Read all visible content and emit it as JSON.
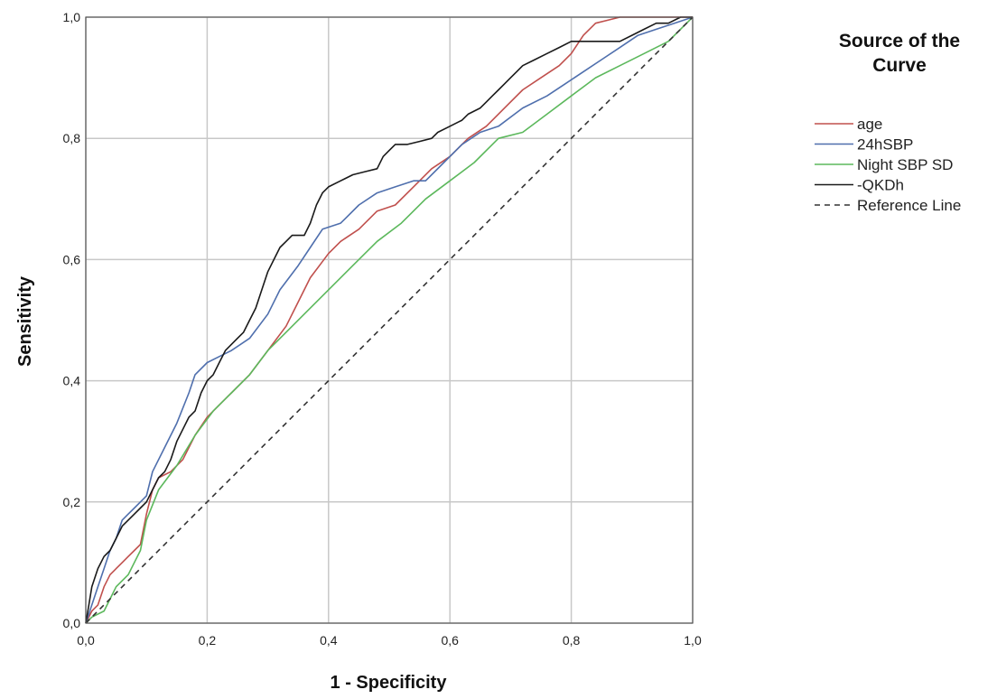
{
  "chart_data": {
    "type": "line",
    "title": "",
    "xlabel": "1 - Specificity",
    "ylabel": "Sensitivity",
    "xlim": [
      0,
      1
    ],
    "ylim": [
      0,
      1
    ],
    "grid": true,
    "legend_placement": "right",
    "legend_title_lines": [
      "Source of the",
      "Curve"
    ],
    "x_ticks": [
      "0,0",
      "0,2",
      "0,4",
      "0,6",
      "0,8",
      "1,0"
    ],
    "y_ticks": [
      "0,0",
      "0,2",
      "0,4",
      "0,6",
      "0,8",
      "1,0"
    ],
    "series": [
      {
        "name": "age",
        "color": "#c0504d",
        "style": "solid",
        "points": [
          [
            0,
            0
          ],
          [
            0.01,
            0.02
          ],
          [
            0.02,
            0.03
          ],
          [
            0.03,
            0.06
          ],
          [
            0.04,
            0.08
          ],
          [
            0.05,
            0.09
          ],
          [
            0.06,
            0.1
          ],
          [
            0.07,
            0.11
          ],
          [
            0.08,
            0.12
          ],
          [
            0.09,
            0.13
          ],
          [
            0.1,
            0.18
          ],
          [
            0.11,
            0.22
          ],
          [
            0.12,
            0.24
          ],
          [
            0.14,
            0.25
          ],
          [
            0.16,
            0.27
          ],
          [
            0.18,
            0.31
          ],
          [
            0.2,
            0.34
          ],
          [
            0.22,
            0.36
          ],
          [
            0.24,
            0.38
          ],
          [
            0.27,
            0.41
          ],
          [
            0.3,
            0.45
          ],
          [
            0.33,
            0.49
          ],
          [
            0.35,
            0.53
          ],
          [
            0.37,
            0.57
          ],
          [
            0.4,
            0.61
          ],
          [
            0.42,
            0.63
          ],
          [
            0.45,
            0.65
          ],
          [
            0.48,
            0.68
          ],
          [
            0.51,
            0.69
          ],
          [
            0.54,
            0.72
          ],
          [
            0.57,
            0.75
          ],
          [
            0.6,
            0.77
          ],
          [
            0.63,
            0.8
          ],
          [
            0.66,
            0.82
          ],
          [
            0.69,
            0.85
          ],
          [
            0.72,
            0.88
          ],
          [
            0.75,
            0.9
          ],
          [
            0.78,
            0.92
          ],
          [
            0.8,
            0.94
          ],
          [
            0.82,
            0.97
          ],
          [
            0.84,
            0.99
          ],
          [
            0.86,
            0.995
          ],
          [
            0.88,
            1.0
          ],
          [
            0.92,
            1.0
          ],
          [
            1.0,
            1.0
          ]
        ]
      },
      {
        "name": "24hSBP",
        "color": "#4f6fad",
        "style": "solid",
        "points": [
          [
            0,
            0
          ],
          [
            0.01,
            0.03
          ],
          [
            0.02,
            0.06
          ],
          [
            0.03,
            0.09
          ],
          [
            0.04,
            0.12
          ],
          [
            0.05,
            0.14
          ],
          [
            0.06,
            0.17
          ],
          [
            0.07,
            0.18
          ],
          [
            0.08,
            0.19
          ],
          [
            0.09,
            0.2
          ],
          [
            0.1,
            0.21
          ],
          [
            0.11,
            0.25
          ],
          [
            0.13,
            0.29
          ],
          [
            0.15,
            0.33
          ],
          [
            0.17,
            0.38
          ],
          [
            0.18,
            0.41
          ],
          [
            0.2,
            0.43
          ],
          [
            0.22,
            0.44
          ],
          [
            0.24,
            0.45
          ],
          [
            0.27,
            0.47
          ],
          [
            0.3,
            0.51
          ],
          [
            0.32,
            0.55
          ],
          [
            0.35,
            0.59
          ],
          [
            0.37,
            0.62
          ],
          [
            0.39,
            0.65
          ],
          [
            0.42,
            0.66
          ],
          [
            0.45,
            0.69
          ],
          [
            0.48,
            0.71
          ],
          [
            0.51,
            0.72
          ],
          [
            0.54,
            0.73
          ],
          [
            0.56,
            0.73
          ],
          [
            0.59,
            0.76
          ],
          [
            0.62,
            0.79
          ],
          [
            0.65,
            0.81
          ],
          [
            0.68,
            0.82
          ],
          [
            0.72,
            0.85
          ],
          [
            0.76,
            0.87
          ],
          [
            0.79,
            0.89
          ],
          [
            0.82,
            0.91
          ],
          [
            0.85,
            0.93
          ],
          [
            0.88,
            0.95
          ],
          [
            0.91,
            0.97
          ],
          [
            0.94,
            0.98
          ],
          [
            0.97,
            0.99
          ],
          [
            1.0,
            1.0
          ]
        ]
      },
      {
        "name": "Night SBP SD",
        "color": "#5cb85c",
        "style": "solid",
        "points": [
          [
            0,
            0
          ],
          [
            0.01,
            0.01
          ],
          [
            0.03,
            0.02
          ],
          [
            0.05,
            0.06
          ],
          [
            0.07,
            0.08
          ],
          [
            0.09,
            0.12
          ],
          [
            0.1,
            0.17
          ],
          [
            0.12,
            0.22
          ],
          [
            0.15,
            0.26
          ],
          [
            0.18,
            0.31
          ],
          [
            0.21,
            0.35
          ],
          [
            0.24,
            0.38
          ],
          [
            0.27,
            0.41
          ],
          [
            0.3,
            0.45
          ],
          [
            0.33,
            0.48
          ],
          [
            0.36,
            0.51
          ],
          [
            0.4,
            0.55
          ],
          [
            0.44,
            0.59
          ],
          [
            0.48,
            0.63
          ],
          [
            0.52,
            0.66
          ],
          [
            0.56,
            0.7
          ],
          [
            0.6,
            0.73
          ],
          [
            0.64,
            0.76
          ],
          [
            0.68,
            0.8
          ],
          [
            0.72,
            0.81
          ],
          [
            0.76,
            0.84
          ],
          [
            0.8,
            0.87
          ],
          [
            0.84,
            0.9
          ],
          [
            0.88,
            0.92
          ],
          [
            0.92,
            0.94
          ],
          [
            0.96,
            0.96
          ],
          [
            1.0,
            1.0
          ]
        ]
      },
      {
        "name": "-QKDh",
        "color": "#1a1a1a",
        "style": "solid",
        "points": [
          [
            0,
            0
          ],
          [
            0.005,
            0.03
          ],
          [
            0.01,
            0.06
          ],
          [
            0.02,
            0.09
          ],
          [
            0.03,
            0.11
          ],
          [
            0.04,
            0.12
          ],
          [
            0.05,
            0.14
          ],
          [
            0.06,
            0.16
          ],
          [
            0.07,
            0.17
          ],
          [
            0.08,
            0.18
          ],
          [
            0.09,
            0.19
          ],
          [
            0.1,
            0.2
          ],
          [
            0.11,
            0.22
          ],
          [
            0.12,
            0.24
          ],
          [
            0.13,
            0.25
          ],
          [
            0.14,
            0.27
          ],
          [
            0.15,
            0.3
          ],
          [
            0.16,
            0.32
          ],
          [
            0.17,
            0.34
          ],
          [
            0.18,
            0.35
          ],
          [
            0.19,
            0.38
          ],
          [
            0.2,
            0.4
          ],
          [
            0.21,
            0.41
          ],
          [
            0.22,
            0.43
          ],
          [
            0.23,
            0.45
          ],
          [
            0.24,
            0.46
          ],
          [
            0.25,
            0.47
          ],
          [
            0.26,
            0.48
          ],
          [
            0.27,
            0.5
          ],
          [
            0.28,
            0.52
          ],
          [
            0.29,
            0.55
          ],
          [
            0.3,
            0.58
          ],
          [
            0.31,
            0.6
          ],
          [
            0.32,
            0.62
          ],
          [
            0.33,
            0.63
          ],
          [
            0.34,
            0.64
          ],
          [
            0.36,
            0.64
          ],
          [
            0.37,
            0.66
          ],
          [
            0.38,
            0.69
          ],
          [
            0.39,
            0.71
          ],
          [
            0.4,
            0.72
          ],
          [
            0.42,
            0.73
          ],
          [
            0.44,
            0.74
          ],
          [
            0.46,
            0.745
          ],
          [
            0.48,
            0.75
          ],
          [
            0.49,
            0.77
          ],
          [
            0.5,
            0.78
          ],
          [
            0.51,
            0.79
          ],
          [
            0.53,
            0.79
          ],
          [
            0.55,
            0.795
          ],
          [
            0.57,
            0.8
          ],
          [
            0.58,
            0.81
          ],
          [
            0.6,
            0.82
          ],
          [
            0.62,
            0.83
          ],
          [
            0.63,
            0.84
          ],
          [
            0.65,
            0.85
          ],
          [
            0.66,
            0.86
          ],
          [
            0.67,
            0.87
          ],
          [
            0.68,
            0.88
          ],
          [
            0.69,
            0.89
          ],
          [
            0.7,
            0.9
          ],
          [
            0.71,
            0.91
          ],
          [
            0.72,
            0.92
          ],
          [
            0.74,
            0.93
          ],
          [
            0.76,
            0.94
          ],
          [
            0.78,
            0.95
          ],
          [
            0.8,
            0.96
          ],
          [
            0.82,
            0.96
          ],
          [
            0.84,
            0.96
          ],
          [
            0.86,
            0.96
          ],
          [
            0.88,
            0.96
          ],
          [
            0.9,
            0.97
          ],
          [
            0.92,
            0.98
          ],
          [
            0.94,
            0.99
          ],
          [
            0.96,
            0.99
          ],
          [
            0.98,
            1.0
          ],
          [
            1.0,
            1.0
          ]
        ]
      },
      {
        "name": "Reference Line",
        "color": "#333333",
        "style": "dashed",
        "points": [
          [
            0,
            0
          ],
          [
            1,
            1
          ]
        ]
      }
    ]
  }
}
